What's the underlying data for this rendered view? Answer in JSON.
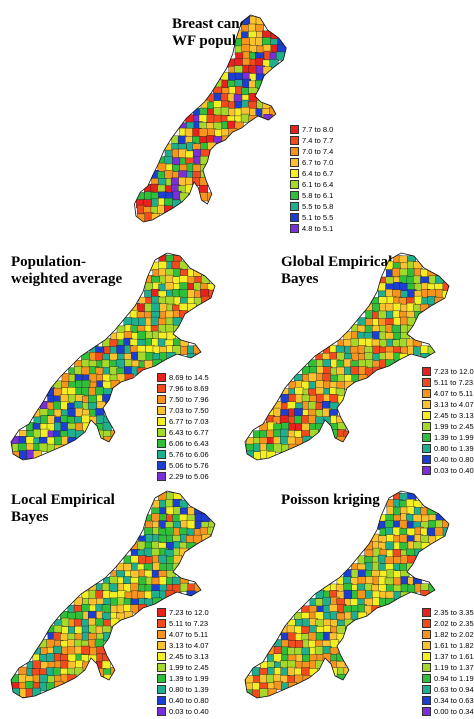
{
  "maps": [
    {
      "id": "breast-cancer",
      "title": "Breast cancer\nWF population",
      "legend": [
        {
          "label": "7.7 to 8.0",
          "color": "#e8211c"
        },
        {
          "label": "7.4 to 7.7",
          "color": "#f04a1d"
        },
        {
          "label": "7.0 to 7.4",
          "color": "#f7941d"
        },
        {
          "label": "6.7 to 7.0",
          "color": "#fcc12f"
        },
        {
          "label": "6.4 to 6.7",
          "color": "#f4ee24"
        },
        {
          "label": "6.1 to 6.4",
          "color": "#a6d82c"
        },
        {
          "label": "5.8 to 6.1",
          "color": "#2fbf3a"
        },
        {
          "label": "5.5 to 5.8",
          "color": "#1fae8e"
        },
        {
          "label": "5.1 to 5.5",
          "color": "#1d3fd1"
        },
        {
          "label": "4.8 to 5.1",
          "color": "#7a2fd9"
        }
      ]
    },
    {
      "id": "population-weighted",
      "title": "Population-\nweighted average",
      "legend": [
        {
          "label": "8.69 to 14.5",
          "color": "#e8211c"
        },
        {
          "label": "7.96 to 8.69",
          "color": "#f04a1d"
        },
        {
          "label": "7.50 to 7.96",
          "color": "#f7941d"
        },
        {
          "label": "7.03 to 7.50",
          "color": "#fcc12f"
        },
        {
          "label": "6.77 to 7.03",
          "color": "#f4ee24"
        },
        {
          "label": "6.43 to 6.77",
          "color": "#a6d82c"
        },
        {
          "label": "6.06 to 6.43",
          "color": "#2fbf3a"
        },
        {
          "label": "5.76 to 6.06",
          "color": "#1fae8e"
        },
        {
          "label": "5.06 to 5.76",
          "color": "#1d3fd1"
        },
        {
          "label": "2.29 to 5.06",
          "color": "#7a2fd9"
        }
      ]
    },
    {
      "id": "global-eb",
      "title": "Global Empirical\nBayes",
      "legend": [
        {
          "label": "7.23 to 12.0",
          "color": "#e8211c"
        },
        {
          "label": "5.11 to 7.23",
          "color": "#f04a1d"
        },
        {
          "label": "4.07 to 5.11",
          "color": "#f7941d"
        },
        {
          "label": "3.13 to 4.07",
          "color": "#fcc12f"
        },
        {
          "label": "2.45 to 3.13",
          "color": "#f4ee24"
        },
        {
          "label": "1.99 to 2.45",
          "color": "#a6d82c"
        },
        {
          "label": "1.39 to 1.99",
          "color": "#2fbf3a"
        },
        {
          "label": "0.80 to 1.39",
          "color": "#1fae8e"
        },
        {
          "label": "0.40 to 0.80",
          "color": "#1d3fd1"
        },
        {
          "label": "0.03 to 0.40",
          "color": "#7a2fd9"
        }
      ]
    },
    {
      "id": "local-eb",
      "title": "Local Empirical\nBayes",
      "legend": [
        {
          "label": "7.23 to 12.0",
          "color": "#e8211c"
        },
        {
          "label": "5.11 to 7.23",
          "color": "#f04a1d"
        },
        {
          "label": "4.07 to 5.11",
          "color": "#f7941d"
        },
        {
          "label": "3.13 to 4.07",
          "color": "#fcc12f"
        },
        {
          "label": "2.45 to 3.13",
          "color": "#f4ee24"
        },
        {
          "label": "1.99 to 2.45",
          "color": "#a6d82c"
        },
        {
          "label": "1.39 to 1.99",
          "color": "#2fbf3a"
        },
        {
          "label": "0.80 to 1.39",
          "color": "#1fae8e"
        },
        {
          "label": "0.40 to 0.80",
          "color": "#1d3fd1"
        },
        {
          "label": "0.03 to 0.40",
          "color": "#7a2fd9"
        }
      ]
    },
    {
      "id": "poisson-kriging",
      "title": "Poisson kriging",
      "legend": [
        {
          "label": "2.35 to 3.35",
          "color": "#e8211c"
        },
        {
          "label": "2.02 to 2.35",
          "color": "#f04a1d"
        },
        {
          "label": "1.82 to 2.02",
          "color": "#f7941d"
        },
        {
          "label": "1.61 to 1.82",
          "color": "#fcc12f"
        },
        {
          "label": "1.37 to 1.61",
          "color": "#f4ee24"
        },
        {
          "label": "1.19 to 1.37",
          "color": "#a6d82c"
        },
        {
          "label": "0.94 to 1.19",
          "color": "#2fbf3a"
        },
        {
          "label": "0.63 to 0.94",
          "color": "#1fae8e"
        },
        {
          "label": "0.34 to 0.63",
          "color": "#1d3fd1"
        },
        {
          "label": "0.00 to 0.34",
          "color": "#7a2fd9"
        }
      ]
    }
  ]
}
